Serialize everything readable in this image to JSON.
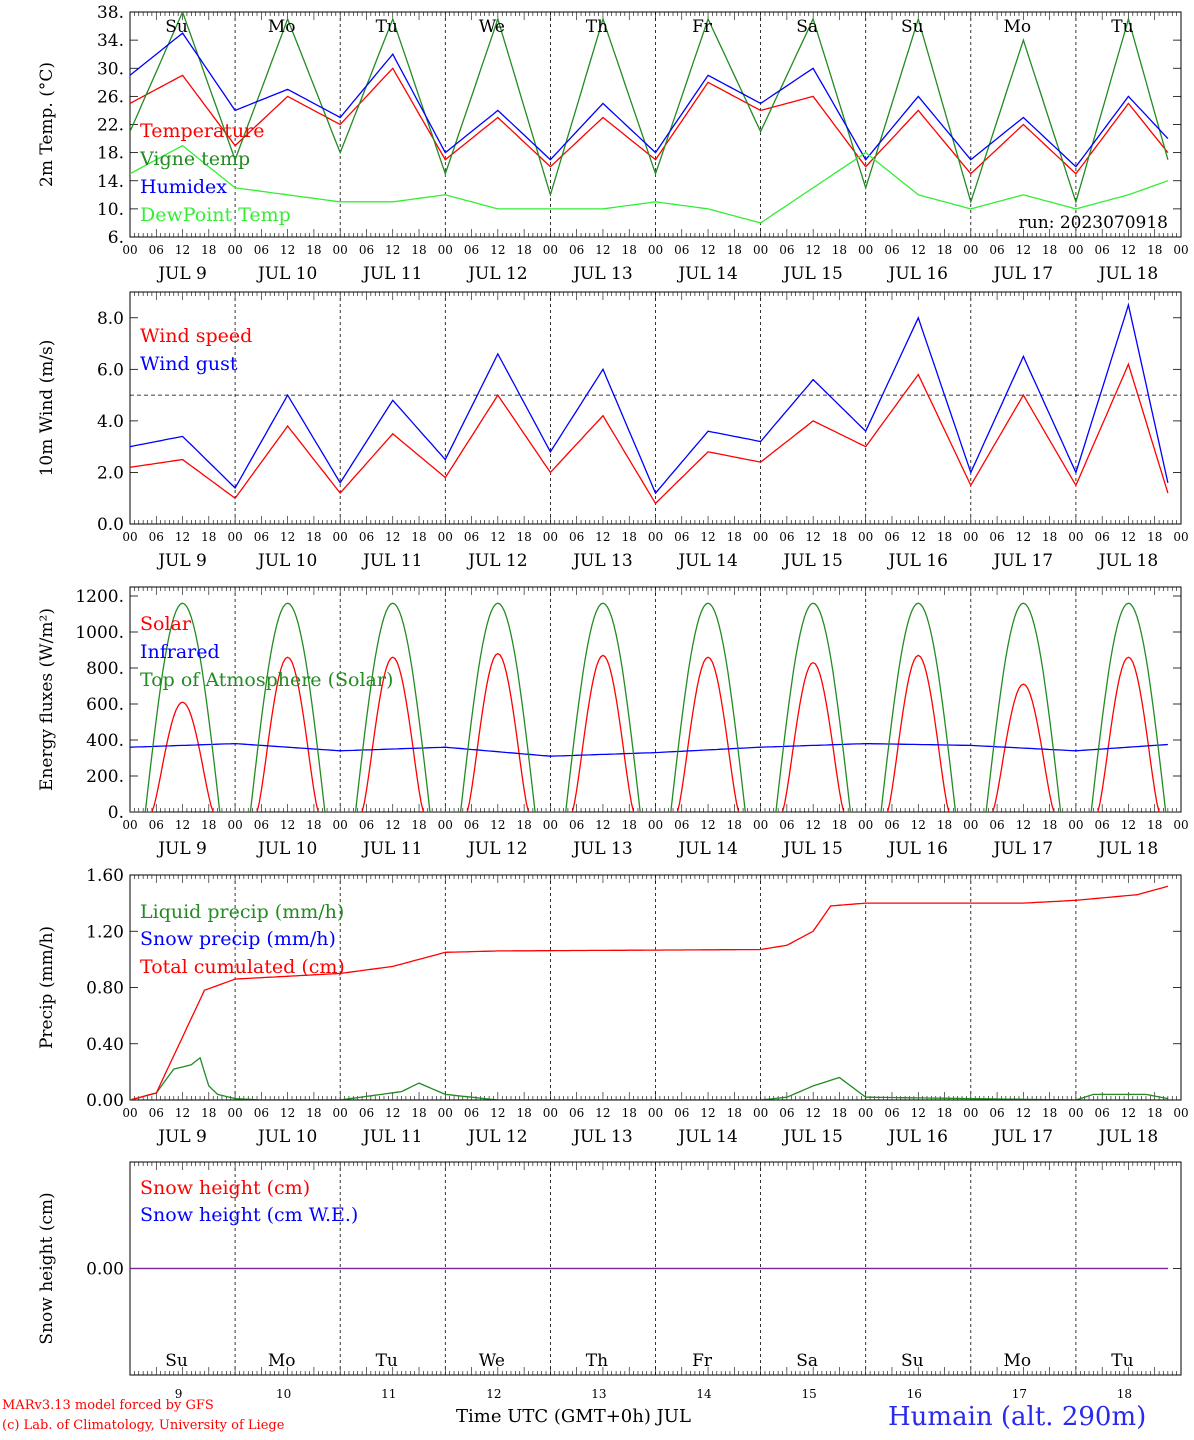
{
  "colors": {
    "red": "#ff0000",
    "green": "#228b22",
    "blue": "#0000ff",
    "lime": "#33ee33",
    "purple": "#7a2a9a",
    "black": "#000000"
  },
  "footer": {
    "model": "MARv3.13 model forced by GFS",
    "lab": "(c) Lab. of Climatology, University of Liege",
    "xlabel": "Time UTC (GMT+0h) JUL",
    "station": "Humain (alt. 290m)"
  },
  "dates": [
    "JUL  9",
    "JUL 10",
    "JUL 11",
    "JUL 12",
    "JUL 13",
    "JUL 14",
    "JUL 15",
    "JUL 16",
    "JUL 17",
    "JUL 18"
  ],
  "day_names": [
    "Su",
    "Mo",
    "Tu",
    "We",
    "Th",
    "Fr",
    "Sa",
    "Su",
    "Mo",
    "Tu"
  ],
  "weekend_days": [
    true,
    false,
    false,
    false,
    false,
    false,
    true,
    true,
    false,
    false
  ],
  "day_numbers": [
    "9",
    "10",
    "11",
    "12",
    "13",
    "14",
    "15",
    "16",
    "17",
    "18"
  ],
  "hour_ticks": [
    "00",
    "06",
    "12",
    "18"
  ],
  "hour_tick_end": "00",
  "chart_data": [
    {
      "type": "line",
      "ylabel": "2m Temp. (°C)",
      "yticks": [
        "6.",
        "10.",
        "14.",
        "18.",
        "22.",
        "26.",
        "30.",
        "34.",
        "38."
      ],
      "ylim": [
        6,
        38
      ],
      "annotation": "run: 2023070918",
      "series": [
        {
          "name": "Temperature",
          "color": "#ff0000",
          "x": [
            0,
            12,
            24,
            36,
            48,
            60,
            72,
            84,
            96,
            108,
            120,
            132,
            144,
            156,
            168,
            180,
            192,
            204,
            216,
            228,
            237
          ],
          "y": [
            25,
            29,
            19,
            26,
            22,
            30,
            17,
            23,
            16,
            23,
            17,
            28,
            24,
            26,
            16,
            24,
            15,
            22,
            15,
            25,
            18
          ]
        },
        {
          "name": "Vigne temp",
          "color": "#228b22",
          "x": [
            0,
            12,
            24,
            36,
            48,
            60,
            72,
            84,
            96,
            108,
            120,
            132,
            144,
            156,
            168,
            180,
            192,
            204,
            216,
            228,
            237
          ],
          "y": [
            21,
            38,
            17,
            37,
            18,
            37,
            15,
            37,
            12,
            37,
            15,
            37,
            21,
            37,
            13,
            37,
            11,
            34,
            11,
            37,
            17
          ]
        },
        {
          "name": "Humidex",
          "color": "#0000ff",
          "x": [
            0,
            12,
            24,
            36,
            48,
            60,
            72,
            84,
            96,
            108,
            120,
            132,
            144,
            156,
            168,
            180,
            192,
            204,
            216,
            228,
            237
          ],
          "y": [
            29,
            35,
            24,
            27,
            23,
            32,
            18,
            24,
            17,
            25,
            18,
            29,
            25,
            30,
            17,
            26,
            17,
            23,
            16,
            26,
            20
          ]
        },
        {
          "name": "DewPoint Temp",
          "color": "#33ee33",
          "x": [
            0,
            12,
            24,
            36,
            48,
            60,
            72,
            84,
            96,
            108,
            120,
            132,
            144,
            156,
            168,
            180,
            192,
            204,
            216,
            228,
            237
          ],
          "y": [
            15,
            19,
            13,
            12,
            11,
            11,
            12,
            10,
            10,
            10,
            11,
            10,
            8,
            13,
            18,
            12,
            10,
            12,
            10,
            12,
            14
          ]
        }
      ]
    },
    {
      "type": "line",
      "ylabel": "10m Wind (m/s)",
      "yticks": [
        "0.0",
        "2.0",
        "4.0",
        "6.0",
        "8.0"
      ],
      "ylim": [
        0,
        9
      ],
      "reference_line": 5,
      "series": [
        {
          "name": "Wind speed",
          "color": "#ff0000",
          "x": [
            0,
            12,
            24,
            36,
            48,
            60,
            72,
            84,
            96,
            108,
            120,
            132,
            144,
            156,
            168,
            180,
            192,
            204,
            216,
            228,
            237
          ],
          "y": [
            2.2,
            2.5,
            1.0,
            3.8,
            1.2,
            3.5,
            1.8,
            5.0,
            2.0,
            4.2,
            0.8,
            2.8,
            2.4,
            4.0,
            3.0,
            5.8,
            1.5,
            5.0,
            1.5,
            6.2,
            1.2
          ]
        },
        {
          "name": "Wind gust",
          "color": "#0000ff",
          "x": [
            0,
            12,
            24,
            36,
            48,
            60,
            72,
            84,
            96,
            108,
            120,
            132,
            144,
            156,
            168,
            180,
            192,
            204,
            216,
            228,
            237
          ],
          "y": [
            3.0,
            3.4,
            1.4,
            5.0,
            1.6,
            4.8,
            2.5,
            6.6,
            2.8,
            6.0,
            1.2,
            3.6,
            3.2,
            5.6,
            3.6,
            8.0,
            2.0,
            6.5,
            2.0,
            8.5,
            1.6
          ]
        }
      ]
    },
    {
      "type": "line",
      "ylabel": "Energy fluxes (W/m²)",
      "yticks": [
        "0.",
        "200.",
        "400.",
        "600.",
        "800.",
        "1000.",
        "1200."
      ],
      "ylim": [
        0,
        1250
      ],
      "series": [
        {
          "name": "Solar",
          "color": "#ff0000",
          "day_peaks": [
            610,
            860,
            860,
            880,
            870,
            860,
            830,
            870,
            710,
            860
          ]
        },
        {
          "name": "Infrared",
          "color": "#0000ff",
          "x": [
            0,
            24,
            48,
            72,
            96,
            120,
            144,
            168,
            192,
            216,
            237
          ],
          "y": [
            360,
            380,
            340,
            360,
            310,
            330,
            360,
            380,
            370,
            340,
            375
          ]
        },
        {
          "name": "Top of Atmosphere (Solar)",
          "color": "#228b22",
          "day_peak": 1160
        }
      ]
    },
    {
      "type": "line",
      "ylabel": "Precip (mm/h)",
      "yticks": [
        "0.00",
        "0.40",
        "0.80",
        "1.20",
        "1.60"
      ],
      "ylim": [
        0,
        1.6
      ],
      "series": [
        {
          "name": "Liquid precip (mm/h)",
          "color": "#228b22",
          "x": [
            0,
            6,
            10,
            14,
            16,
            18,
            20,
            24,
            30,
            48,
            62,
            66,
            72,
            84,
            144,
            150,
            156,
            162,
            168,
            216,
            220,
            232,
            237
          ],
          "y": [
            0,
            0.05,
            0.22,
            0.25,
            0.3,
            0.1,
            0.04,
            0.01,
            0,
            0,
            0.06,
            0.12,
            0.04,
            0,
            0,
            0.02,
            0.1,
            0.16,
            0.02,
            0,
            0.04,
            0.04,
            0.01
          ]
        },
        {
          "name": "Snow precip (mm/h)",
          "color": "#0000ff",
          "x": [
            0,
            237
          ],
          "y": [
            0,
            0
          ]
        },
        {
          "name": "Total cumulated (cm)",
          "color": "#ff0000",
          "x": [
            0,
            6,
            17,
            24,
            48,
            60,
            72,
            84,
            144,
            150,
            156,
            160,
            168,
            180,
            204,
            216,
            230,
            237
          ],
          "y": [
            0,
            0.05,
            0.78,
            0.86,
            0.9,
            0.95,
            1.05,
            1.06,
            1.07,
            1.1,
            1.2,
            1.38,
            1.4,
            1.4,
            1.4,
            1.42,
            1.46,
            1.52
          ]
        }
      ]
    },
    {
      "type": "line",
      "ylabel": "Snow height (cm)",
      "yticks": [
        "0.00"
      ],
      "ylim": [
        -1,
        1
      ],
      "series": [
        {
          "name": "Snow height (cm)",
          "color": "#ff0000",
          "x": [
            0,
            237
          ],
          "y": [
            0,
            0
          ]
        },
        {
          "name": "Snow height (cm W.E.)",
          "color": "#0000ff",
          "x": [
            0,
            237
          ],
          "y": [
            0,
            0
          ]
        }
      ]
    }
  ]
}
